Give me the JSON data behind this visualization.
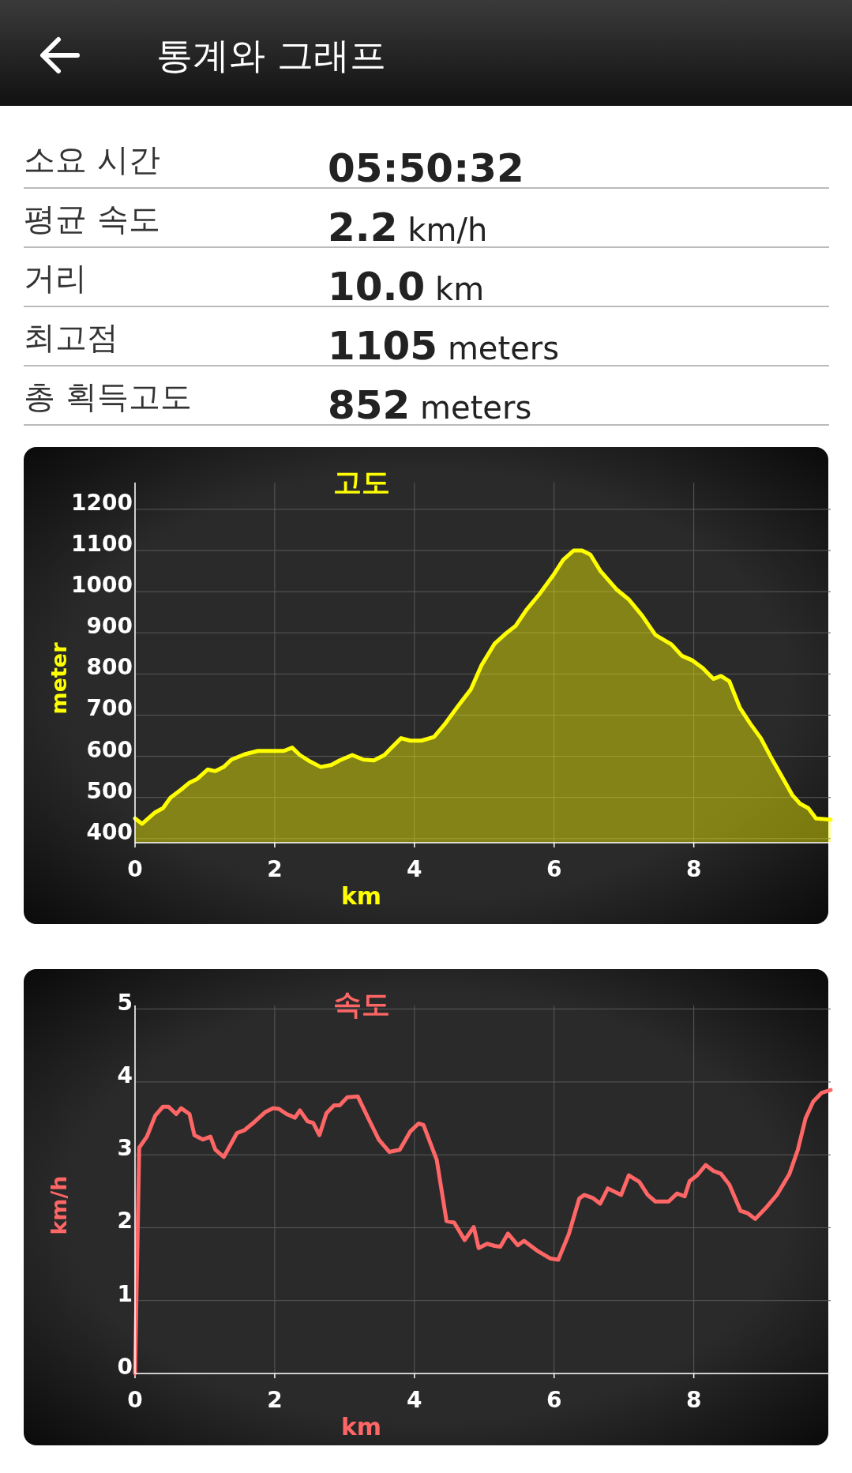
{
  "chart_data": [
    {
      "type": "other",
      "title": "통계와 그래프",
      "annotations": [
        "소요 시간",
        "05:50:32",
        "평균 속도",
        "2.2 km/h",
        "거리",
        "10.0 km",
        "최고점",
        "1105 meters",
        "총 획득고도",
        "852 meters"
      ]
    },
    {
      "type": "area",
      "title": "고도",
      "xlabel": "km",
      "ylabel": "meter",
      "color": "#ffff00",
      "grid": true,
      "xlim": [
        0,
        9.96
      ],
      "ylim": [
        390,
        1265
      ],
      "xticks": [
        0,
        2,
        4,
        6,
        8
      ],
      "yticks": [
        400,
        500,
        600,
        700,
        800,
        900,
        1000,
        1100,
        1200
      ],
      "x": [
        0,
        0.1,
        0.29,
        0.4,
        0.51,
        0.66,
        0.78,
        0.89,
        1.04,
        1.15,
        1.27,
        1.38,
        1.57,
        1.76,
        1.95,
        2.13,
        2.25,
        2.36,
        2.51,
        2.66,
        2.81,
        2.93,
        3.11,
        3.27,
        3.42,
        3.57,
        3.68,
        3.81,
        3.94,
        4.1,
        4.28,
        4.43,
        4.62,
        4.81,
        4.96,
        5.15,
        5.3,
        5.45,
        5.6,
        5.79,
        5.98,
        6.13,
        6.28,
        6.4,
        6.52,
        6.66,
        6.89,
        7.07,
        7.26,
        7.45,
        7.68,
        7.83,
        7.98,
        8.13,
        8.28,
        8.39,
        8.51,
        8.66,
        8.81,
        8.96,
        9.11,
        9.26,
        9.41,
        9.52,
        9.64,
        9.75,
        9.96
      ],
      "values": [
        449,
        436,
        464,
        474,
        500,
        519,
        536,
        545,
        568,
        564,
        574,
        592,
        605,
        613,
        613,
        613,
        621,
        603,
        587,
        574,
        579,
        590,
        603,
        592,
        590,
        603,
        622,
        644,
        638,
        638,
        647,
        677,
        721,
        763,
        821,
        874,
        897,
        917,
        955,
        994,
        1038,
        1077,
        1100,
        1100,
        1090,
        1051,
        1006,
        981,
        942,
        895,
        872,
        844,
        833,
        814,
        788,
        795,
        782,
        718,
        679,
        644,
        596,
        551,
        506,
        485,
        474,
        449,
        446
      ]
    },
    {
      "type": "line",
      "title": "속도",
      "xlabel": "km",
      "ylabel": "km/h",
      "color": "#ff6666",
      "grid": true,
      "xlim": [
        0,
        9.96
      ],
      "ylim": [
        0,
        5.05
      ],
      "xticks": [
        0,
        2,
        4,
        6,
        8
      ],
      "yticks": [
        0,
        1,
        2,
        3,
        4,
        5
      ],
      "x": [
        0,
        0.06,
        0.17,
        0.29,
        0.4,
        0.48,
        0.59,
        0.66,
        0.78,
        0.85,
        0.97,
        1.08,
        1.15,
        1.27,
        1.46,
        1.57,
        1.72,
        1.87,
        1.98,
        2.06,
        2.17,
        2.29,
        2.36,
        2.47,
        2.55,
        2.64,
        2.74,
        2.85,
        2.93,
        3.04,
        3.19,
        3.34,
        3.49,
        3.64,
        3.79,
        3.94,
        4.06,
        4.13,
        4.32,
        4.46,
        4.57,
        4.72,
        4.85,
        4.92,
        5.04,
        5.15,
        5.23,
        5.34,
        5.48,
        5.57,
        5.75,
        5.94,
        6.06,
        6.21,
        6.36,
        6.43,
        6.55,
        6.66,
        6.77,
        6.96,
        7.07,
        7.22,
        7.34,
        7.45,
        7.64,
        7.76,
        7.87,
        7.94,
        8.05,
        8.17,
        8.28,
        8.39,
        8.51,
        8.67,
        8.77,
        8.88,
        9.03,
        9.19,
        9.37,
        9.49,
        9.6,
        9.71,
        9.83,
        9.96
      ],
      "values": [
        0,
        3.1,
        3.25,
        3.54,
        3.66,
        3.66,
        3.56,
        3.64,
        3.56,
        3.27,
        3.21,
        3.25,
        3.07,
        2.97,
        3.3,
        3.34,
        3.46,
        3.59,
        3.64,
        3.63,
        3.56,
        3.51,
        3.61,
        3.46,
        3.44,
        3.27,
        3.57,
        3.68,
        3.68,
        3.79,
        3.8,
        3.5,
        3.21,
        3.04,
        3.07,
        3.32,
        3.43,
        3.41,
        2.93,
        2.09,
        2.07,
        1.83,
        2.01,
        1.72,
        1.78,
        1.75,
        1.74,
        1.92,
        1.76,
        1.82,
        1.69,
        1.58,
        1.56,
        1.91,
        2.4,
        2.45,
        2.41,
        2.33,
        2.54,
        2.45,
        2.72,
        2.63,
        2.45,
        2.36,
        2.36,
        2.47,
        2.43,
        2.64,
        2.72,
        2.86,
        2.78,
        2.74,
        2.59,
        2.23,
        2.2,
        2.12,
        2.27,
        2.45,
        2.74,
        3.07,
        3.5,
        3.73,
        3.85,
        3.89
      ]
    }
  ]
}
